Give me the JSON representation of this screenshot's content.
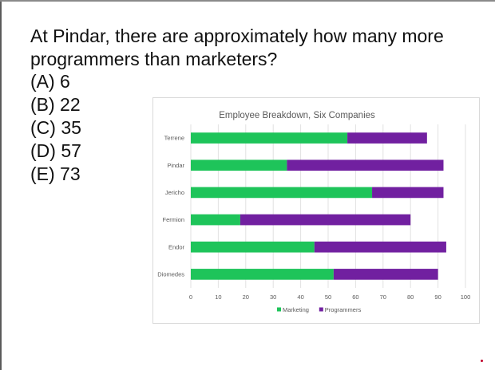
{
  "question": {
    "text": "At Pindar, there are approximately how many more programmers than marketers?",
    "choices": [
      "(A) 6",
      "(B) 22",
      "(C) 35",
      "(D) 57",
      "(E) 73"
    ]
  },
  "chart_data": {
    "type": "bar",
    "orientation": "horizontal",
    "stacked": true,
    "title": "Employee Breakdown, Six Companies",
    "categories": [
      "Terrene",
      "Pindar",
      "Jericho",
      "Fermion",
      "Endor",
      "Diomedes"
    ],
    "series": [
      {
        "name": "Marketing",
        "color": "#1ec45a",
        "values": [
          57,
          35,
          66,
          18,
          45,
          52
        ]
      },
      {
        "name": "Programmers",
        "color": "#7120a0",
        "values": [
          29,
          57,
          26,
          62,
          48,
          38
        ]
      }
    ],
    "xticks": [
      "0",
      "10",
      "20",
      "30",
      "40",
      "50",
      "60",
      "70",
      "80",
      "90",
      "100"
    ],
    "xlim": [
      0,
      100
    ],
    "grid": true,
    "legend_position": "bottom"
  }
}
